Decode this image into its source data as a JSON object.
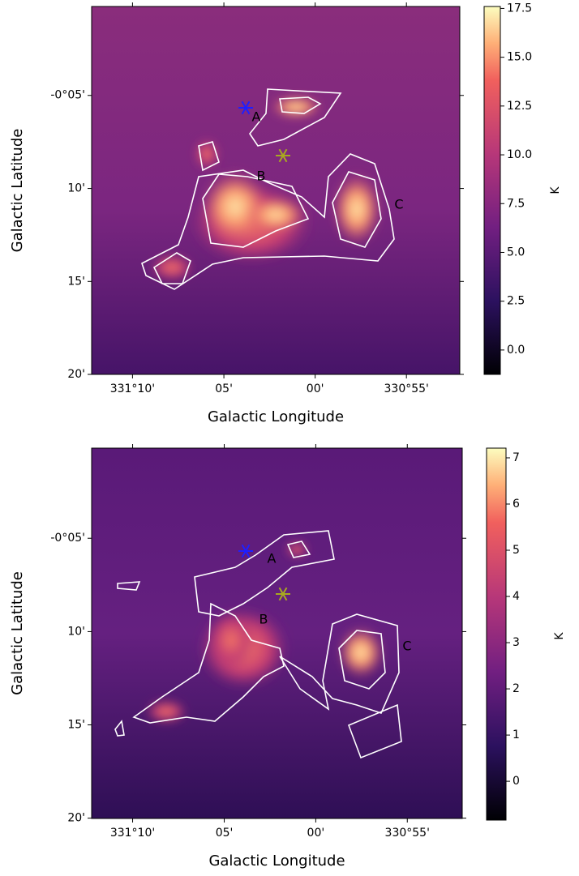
{
  "chart_data": [
    {
      "type": "image",
      "xlabel": "Galactic Longitude",
      "ylabel": "Galactic Latitude",
      "xlim": [
        331.204,
        330.868
      ],
      "ylim": [
        -0.3333,
        -0.0036
      ],
      "xticks": [
        {
          "value": 331.1667,
          "label": "331°10'"
        },
        {
          "value": 331.0833,
          "label": "05'"
        },
        {
          "value": 331.0,
          "label": "00'"
        },
        {
          "value": 330.9167,
          "label": "330°55'"
        }
      ],
      "yticks": [
        {
          "value": -0.0833,
          "label": "-0°05'"
        },
        {
          "value": -0.1667,
          "label": "10'"
        },
        {
          "value": -0.25,
          "label": "15'"
        },
        {
          "value": -0.3333,
          "label": "20'"
        }
      ],
      "annotations": [
        "A",
        "B",
        "C"
      ],
      "colorbar": {
        "label": "K",
        "lim": [
          -1.25,
          17.6
        ],
        "ticks": [
          {
            "value": 0,
            "label": "0.0"
          },
          2.5,
          {
            "value": 5,
            "label": "5.0"
          },
          7.5,
          {
            "value": 10,
            "label": "10.0"
          },
          12.5,
          {
            "value": 15,
            "label": "15.0"
          },
          17.5
        ]
      }
    },
    {
      "type": "image",
      "xlabel": "Galactic Longitude",
      "ylabel": "Galactic Latitude",
      "xlim": [
        331.204,
        330.8667
      ],
      "ylim": [
        -0.3336,
        -0.0028
      ],
      "xticks": [
        {
          "value": 331.1667,
          "label": "331°10'"
        },
        {
          "value": 331.0833,
          "label": "05'"
        },
        {
          "value": 331.0,
          "label": "00'"
        },
        {
          "value": 330.9167,
          "label": "330°55'"
        }
      ],
      "yticks": [
        {
          "value": -0.0833,
          "label": "-0°05'"
        },
        {
          "value": -0.1667,
          "label": "10'"
        },
        {
          "value": -0.25,
          "label": "15'"
        },
        {
          "value": -0.3333,
          "label": "20'"
        }
      ],
      "annotations": [
        "A",
        "B",
        "C"
      ],
      "colorbar": {
        "label": "K",
        "lim": [
          -0.84,
          7.21
        ],
        "ticks": [
          0,
          1,
          2,
          3,
          4,
          5,
          6,
          7
        ]
      }
    }
  ]
}
